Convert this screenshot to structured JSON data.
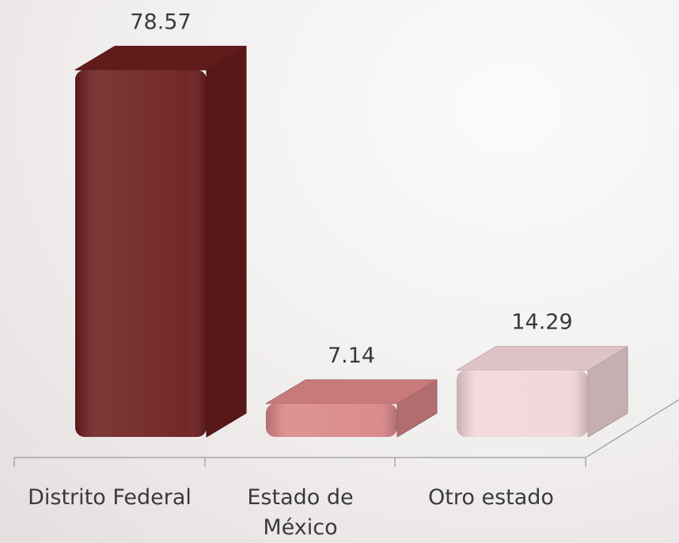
{
  "chart_data": {
    "type": "bar3d",
    "categories": [
      "Distrito Federal",
      "Estado de México",
      "Otro estado"
    ],
    "values": [
      78.57,
      7.14,
      14.29
    ],
    "colors": [
      "#6b1d1d",
      "#d98586",
      "#f2d5d8"
    ],
    "ylim": [
      0,
      80
    ]
  }
}
